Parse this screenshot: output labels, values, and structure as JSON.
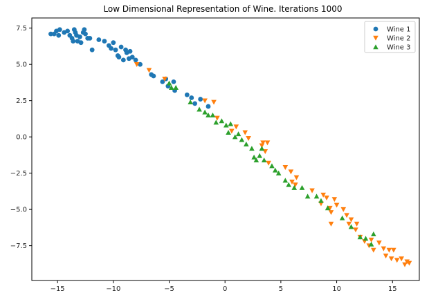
{
  "chart_data": {
    "type": "scatter",
    "title": "Low Dimensional Representation of Wine. Iterations 1000",
    "xlabel": "",
    "ylabel": "",
    "xlim": [
      -17.3,
      17.4
    ],
    "ylim": [
      -9.9,
      8.2
    ],
    "xticks": [
      -15,
      -10,
      -5,
      0,
      5,
      10,
      15
    ],
    "yticks": [
      -7.5,
      -5.0,
      -2.5,
      0.0,
      2.5,
      5.0,
      7.5
    ],
    "xtick_labels": [
      "−15",
      "−10",
      "−5",
      "0",
      "5",
      "10",
      "15"
    ],
    "ytick_labels": [
      "−7.5",
      "−5.0",
      "−2.5",
      "0.0",
      "2.5",
      "5.0",
      "7.5"
    ],
    "grid": false,
    "legend_position": "top-right",
    "series": [
      {
        "name": "Wine 1",
        "marker": "circle",
        "color": "#1f77b4",
        "points": [
          [
            -15.6,
            7.1
          ],
          [
            -15.3,
            7.1
          ],
          [
            -15.1,
            7.3
          ],
          [
            -14.9,
            7.0
          ],
          [
            -14.8,
            7.4
          ],
          [
            -14.4,
            7.2
          ],
          [
            -14.1,
            7.3
          ],
          [
            -13.9,
            7.0
          ],
          [
            -13.7,
            6.8
          ],
          [
            -13.6,
            6.6
          ],
          [
            -13.5,
            7.4
          ],
          [
            -13.4,
            7.2
          ],
          [
            -13.3,
            7.0
          ],
          [
            -13.2,
            6.6
          ],
          [
            -13.0,
            6.9
          ],
          [
            -12.9,
            6.5
          ],
          [
            -12.7,
            7.2
          ],
          [
            -12.6,
            7.4
          ],
          [
            -12.5,
            7.1
          ],
          [
            -12.3,
            6.8
          ],
          [
            -12.1,
            6.8
          ],
          [
            -11.9,
            6.0
          ],
          [
            -11.3,
            6.7
          ],
          [
            -10.8,
            6.6
          ],
          [
            -10.4,
            6.3
          ],
          [
            -10.2,
            6.1
          ],
          [
            -10.0,
            6.5
          ],
          [
            -9.8,
            6.0
          ],
          [
            -9.6,
            5.6
          ],
          [
            -9.5,
            5.5
          ],
          [
            -9.3,
            6.2
          ],
          [
            -9.1,
            5.3
          ],
          [
            -8.9,
            6.0
          ],
          [
            -8.8,
            5.8
          ],
          [
            -8.6,
            5.4
          ],
          [
            -8.5,
            5.9
          ],
          [
            -8.3,
            5.5
          ],
          [
            -8.0,
            5.3
          ],
          [
            -7.6,
            5.0
          ],
          [
            -6.6,
            4.3
          ],
          [
            -6.4,
            4.2
          ],
          [
            -5.6,
            3.8
          ],
          [
            -5.3,
            4.0
          ],
          [
            -5.1,
            3.5
          ],
          [
            -4.6,
            3.8
          ],
          [
            -4.5,
            3.2
          ],
          [
            -3.4,
            2.9
          ],
          [
            -3.0,
            2.7
          ],
          [
            -2.7,
            2.3
          ],
          [
            -2.2,
            2.6
          ],
          [
            -1.5,
            2.1
          ]
        ]
      },
      {
        "name": "Wine 2",
        "marker": "triangle-down",
        "color": "#ff7f0e",
        "points": [
          [
            -7.9,
            5.0
          ],
          [
            -6.8,
            4.6
          ],
          [
            -5.4,
            4.0
          ],
          [
            -1.8,
            2.5
          ],
          [
            -1.0,
            2.4
          ],
          [
            -0.7,
            1.3
          ],
          [
            0.6,
            0.4
          ],
          [
            1.0,
            0.7
          ],
          [
            1.8,
            0.3
          ],
          [
            2.1,
            -0.1
          ],
          [
            3.3,
            -0.6
          ],
          [
            3.4,
            -0.4
          ],
          [
            3.6,
            -1.0
          ],
          [
            3.8,
            -0.4
          ],
          [
            3.9,
            -1.8
          ],
          [
            5.4,
            -2.1
          ],
          [
            5.9,
            -2.4
          ],
          [
            6.0,
            -3.1
          ],
          [
            6.3,
            -3.3
          ],
          [
            6.4,
            -2.8
          ],
          [
            7.8,
            -3.7
          ],
          [
            8.6,
            -4.6
          ],
          [
            8.8,
            -4.0
          ],
          [
            9.1,
            -4.2
          ],
          [
            9.4,
            -4.9
          ],
          [
            9.5,
            -5.2
          ],
          [
            9.5,
            -6.0
          ],
          [
            9.8,
            -4.3
          ],
          [
            10.0,
            -4.7
          ],
          [
            10.6,
            -5.0
          ],
          [
            10.9,
            -5.4
          ],
          [
            11.1,
            -6.0
          ],
          [
            11.3,
            -5.7
          ],
          [
            11.7,
            -6.4
          ],
          [
            11.8,
            -6.0
          ],
          [
            12.1,
            -6.9
          ],
          [
            12.5,
            -7.2
          ],
          [
            12.9,
            -7.5
          ],
          [
            13.1,
            -7.1
          ],
          [
            13.3,
            -7.8
          ],
          [
            13.8,
            -7.3
          ],
          [
            14.2,
            -7.7
          ],
          [
            14.4,
            -8.2
          ],
          [
            14.7,
            -7.8
          ],
          [
            14.9,
            -8.4
          ],
          [
            15.1,
            -7.8
          ],
          [
            15.4,
            -8.5
          ],
          [
            15.8,
            -8.4
          ],
          [
            16.1,
            -8.8
          ],
          [
            16.3,
            -8.6
          ],
          [
            16.5,
            -8.7
          ]
        ]
      },
      {
        "name": "Wine 3",
        "marker": "triangle-up",
        "color": "#2ca02c",
        "points": [
          [
            -5.0,
            3.7
          ],
          [
            -4.8,
            3.4
          ],
          [
            -4.4,
            3.4
          ],
          [
            -3.1,
            2.4
          ],
          [
            -2.3,
            1.9
          ],
          [
            -1.8,
            1.7
          ],
          [
            -1.5,
            1.5
          ],
          [
            -1.1,
            1.5
          ],
          [
            -0.8,
            1.0
          ],
          [
            -0.3,
            1.1
          ],
          [
            0.1,
            0.8
          ],
          [
            0.3,
            0.3
          ],
          [
            0.5,
            0.9
          ],
          [
            0.9,
            0.0
          ],
          [
            1.2,
            0.2
          ],
          [
            1.5,
            -0.2
          ],
          [
            1.9,
            -0.5
          ],
          [
            2.4,
            -0.8
          ],
          [
            2.6,
            -1.4
          ],
          [
            2.8,
            -1.6
          ],
          [
            3.1,
            -1.3
          ],
          [
            3.3,
            -0.8
          ],
          [
            3.5,
            -1.6
          ],
          [
            4.2,
            -2.0
          ],
          [
            4.5,
            -2.3
          ],
          [
            4.8,
            -2.5
          ],
          [
            5.4,
            -3.0
          ],
          [
            5.7,
            -3.3
          ],
          [
            6.2,
            -3.5
          ],
          [
            6.9,
            -3.5
          ],
          [
            7.4,
            -4.1
          ],
          [
            8.2,
            -4.1
          ],
          [
            8.6,
            -4.4
          ],
          [
            9.2,
            -4.9
          ],
          [
            10.5,
            -5.6
          ],
          [
            11.3,
            -6.2
          ],
          [
            12.1,
            -6.9
          ],
          [
            12.6,
            -7.0
          ],
          [
            13.1,
            -7.4
          ],
          [
            13.3,
            -6.7
          ]
        ]
      }
    ]
  }
}
